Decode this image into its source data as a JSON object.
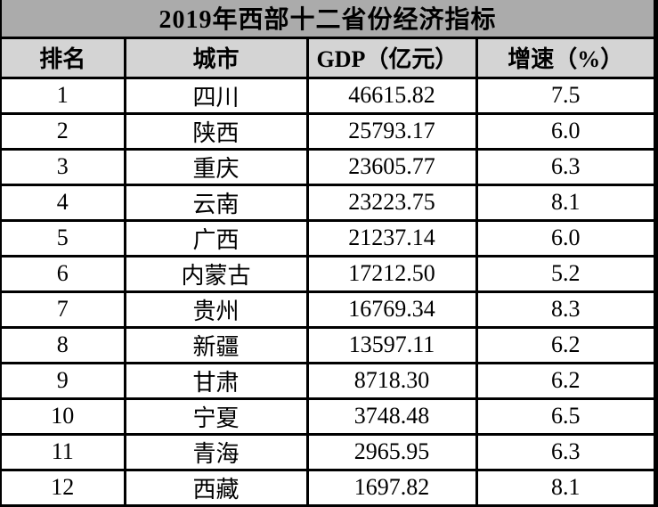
{
  "colors": {
    "title_bg": "#ababab",
    "header_bg": "#d4d4d4",
    "border": "#000000",
    "text": "#000000",
    "row_bg": "#ffffff"
  },
  "chart_data": {
    "type": "table",
    "title": "2019年西部十二省份经济指标",
    "columns": [
      "排名",
      "城市",
      "GDP（亿元）",
      "增速（%）"
    ],
    "rows": [
      [
        "1",
        "四川",
        "46615.82",
        "7.5"
      ],
      [
        "2",
        "陕西",
        "25793.17",
        "6.0"
      ],
      [
        "3",
        "重庆",
        "23605.77",
        "6.3"
      ],
      [
        "4",
        "云南",
        "23223.75",
        "8.1"
      ],
      [
        "5",
        "广西",
        "21237.14",
        "6.0"
      ],
      [
        "6",
        "内蒙古",
        "17212.50",
        "5.2"
      ],
      [
        "7",
        "贵州",
        "16769.34",
        "8.3"
      ],
      [
        "8",
        "新疆",
        "13597.11",
        "6.2"
      ],
      [
        "9",
        "甘肃",
        "8718.30",
        "6.2"
      ],
      [
        "10",
        "宁夏",
        "3748.48",
        "6.5"
      ],
      [
        "11",
        "青海",
        "2965.95",
        "6.3"
      ],
      [
        "12",
        "西藏",
        "1697.82",
        "8.1"
      ]
    ]
  }
}
